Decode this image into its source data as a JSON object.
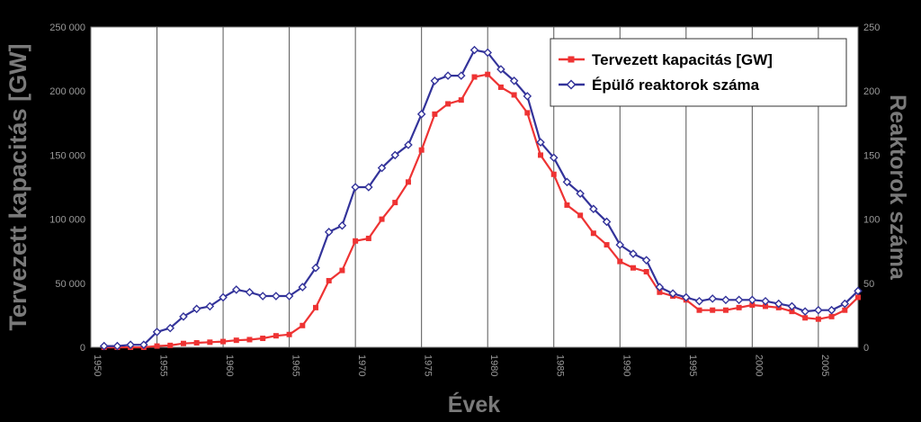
{
  "chart_data": {
    "type": "line",
    "xlabel": "Évek",
    "ylabel_left": "Tervezett kapacitás [GW]",
    "ylabel_right": "Reaktorok száma",
    "xlim": [
      1950,
      2008
    ],
    "ylim_left": [
      0,
      250000
    ],
    "ylim_right": [
      0,
      250
    ],
    "x_ticks": [
      "1950",
      "1955",
      "1960",
      "1965",
      "1970",
      "1975",
      "1980",
      "1985",
      "1990",
      "1995",
      "2000",
      "2005"
    ],
    "y_left_ticks": [
      "0",
      "50 000",
      "100 000",
      "150 000",
      "200 000",
      "250 000"
    ],
    "y_right_ticks": [
      "0",
      "50",
      "100",
      "150",
      "200",
      "250"
    ],
    "grid": "vertical",
    "legend_position": "top-right",
    "x": [
      1951,
      1952,
      1953,
      1954,
      1955,
      1956,
      1957,
      1958,
      1959,
      1960,
      1961,
      1962,
      1963,
      1964,
      1965,
      1966,
      1967,
      1968,
      1969,
      1970,
      1971,
      1972,
      1973,
      1974,
      1975,
      1976,
      1977,
      1978,
      1979,
      1980,
      1981,
      1982,
      1983,
      1984,
      1985,
      1986,
      1987,
      1988,
      1989,
      1990,
      1991,
      1992,
      1993,
      1994,
      1995,
      1996,
      1997,
      1998,
      1999,
      2000,
      2001,
      2002,
      2003,
      2004,
      2005,
      2006,
      2007,
      2008
    ],
    "series": [
      {
        "name": "Tervezett kapacitás [GW]",
        "axis": "left",
        "color": "#ee3333",
        "marker": "square",
        "values": [
          0,
          0,
          0,
          0,
          1000,
          1500,
          3000,
          3500,
          4000,
          4500,
          5500,
          6000,
          7000,
          9000,
          10000,
          17000,
          31000,
          52000,
          60000,
          83000,
          85000,
          100000,
          113000,
          129000,
          154000,
          182000,
          190000,
          193000,
          211000,
          213000,
          203000,
          197000,
          183000,
          150000,
          135000,
          111000,
          103000,
          89000,
          80000,
          67000,
          62000,
          59000,
          43000,
          40000,
          37000,
          29000,
          29000,
          29000,
          31000,
          33000,
          32000,
          31000,
          28000,
          23000,
          22000,
          24000,
          29000,
          39000
        ]
      },
      {
        "name": "Épülő reaktorok száma",
        "axis": "right",
        "color": "#33339a",
        "marker": "diamond",
        "values": [
          1,
          1,
          2,
          2,
          12,
          15,
          24,
          30,
          32,
          39,
          45,
          43,
          40,
          40,
          40,
          47,
          62,
          90,
          95,
          125,
          125,
          140,
          150,
          158,
          182,
          208,
          212,
          212,
          232,
          230,
          217,
          208,
          196,
          160,
          148,
          129,
          120,
          108,
          98,
          80,
          73,
          68,
          47,
          42,
          39,
          36,
          38,
          37,
          37,
          37,
          36,
          34,
          32,
          28,
          29,
          29,
          34,
          44
        ]
      }
    ]
  }
}
